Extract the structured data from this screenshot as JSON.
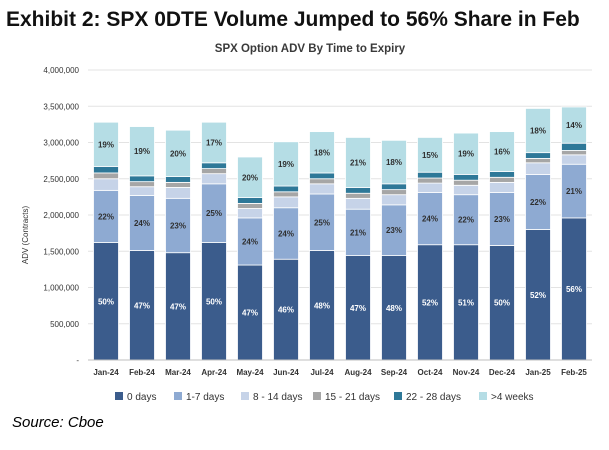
{
  "headline": "Exhibit 2: SPX 0DTE Volume Jumped to 56% Share in Feb",
  "source": "Source: Cboe",
  "chart_data": {
    "type": "bar",
    "stacked": true,
    "title": "SPX Option ADV By Time to Expiry",
    "xlabel": "",
    "ylabel": "ADV (Contracts)",
    "ylim": [
      0,
      4000000
    ],
    "yticks": [
      0,
      500000,
      1000000,
      1500000,
      2000000,
      2500000,
      3000000,
      3500000,
      4000000
    ],
    "ytick_labels": [
      "-",
      "500,000",
      "1,000,000",
      "1,500,000",
      "2,000,000",
      "2,500,000",
      "3,000,000",
      "3,500,000",
      "4,000,000"
    ],
    "grid": true,
    "legend_position": "bottom",
    "categories": [
      "Jan-24",
      "Feb-24",
      "Mar-24",
      "Apr-24",
      "May-24",
      "Jun-24",
      "Jul-24",
      "Aug-24",
      "Sep-24",
      "Oct-24",
      "Nov-24",
      "Dec-24",
      "Jan-25",
      "Feb-25"
    ],
    "series": [
      {
        "name": "0 days",
        "color": "#3b5c8c",
        "values": [
          1620000,
          1510000,
          1480000,
          1620000,
          1310000,
          1390000,
          1510000,
          1440000,
          1440000,
          1590000,
          1590000,
          1580000,
          1800000,
          1960000
        ],
        "labels": [
          "50%",
          "47%",
          "47%",
          "50%",
          "47%",
          "46%",
          "48%",
          "47%",
          "48%",
          "52%",
          "51%",
          "50%",
          "52%",
          "56%"
        ]
      },
      {
        "name": "1-7 days",
        "color": "#8eaad2",
        "values": [
          720000,
          760000,
          750000,
          810000,
          650000,
          710000,
          780000,
          640000,
          700000,
          720000,
          690000,
          730000,
          760000,
          740000
        ],
        "labels": [
          "22%",
          "24%",
          "23%",
          "25%",
          "24%",
          "24%",
          "25%",
          "21%",
          "23%",
          "24%",
          "22%",
          "23%",
          "22%",
          "21%"
        ]
      },
      {
        "name": "8 - 14 days",
        "color": "#c6d3e8",
        "values": [
          160000,
          120000,
          150000,
          140000,
          130000,
          150000,
          140000,
          150000,
          140000,
          130000,
          130000,
          140000,
          160000,
          130000
        ],
        "labels": [
          "",
          "",
          "",
          "",
          "",
          "",
          "",
          "",
          "",
          "",
          "",
          "",
          "",
          ""
        ]
      },
      {
        "name": "15 - 21 days",
        "color": "#a6a6a6",
        "values": [
          80000,
          70000,
          70000,
          70000,
          70000,
          70000,
          70000,
          70000,
          70000,
          70000,
          70000,
          70000,
          60000,
          60000
        ],
        "labels": [
          "",
          "",
          "",
          "",
          "",
          "",
          "",
          "",
          "",
          "",
          "",
          "",
          "",
          ""
        ]
      },
      {
        "name": "22 - 28 days",
        "color": "#2e7898",
        "values": [
          90000,
          80000,
          80000,
          80000,
          80000,
          80000,
          80000,
          80000,
          80000,
          80000,
          80000,
          80000,
          80000,
          100000
        ],
        "labels": [
          "",
          "",
          "",
          "",
          "",
          "",
          "",
          "",
          "",
          "",
          "",
          "",
          "",
          ""
        ]
      },
      {
        "name": ">4 weeks",
        "color": "#b5dde5",
        "values": [
          610000,
          680000,
          640000,
          560000,
          560000,
          610000,
          570000,
          690000,
          600000,
          480000,
          570000,
          550000,
          610000,
          500000
        ],
        "labels": [
          "19%",
          "19%",
          "20%",
          "17%",
          "20%",
          "19%",
          "18%",
          "21%",
          "18%",
          "15%",
          "19%",
          "16%",
          "18%",
          "14%"
        ]
      }
    ]
  }
}
